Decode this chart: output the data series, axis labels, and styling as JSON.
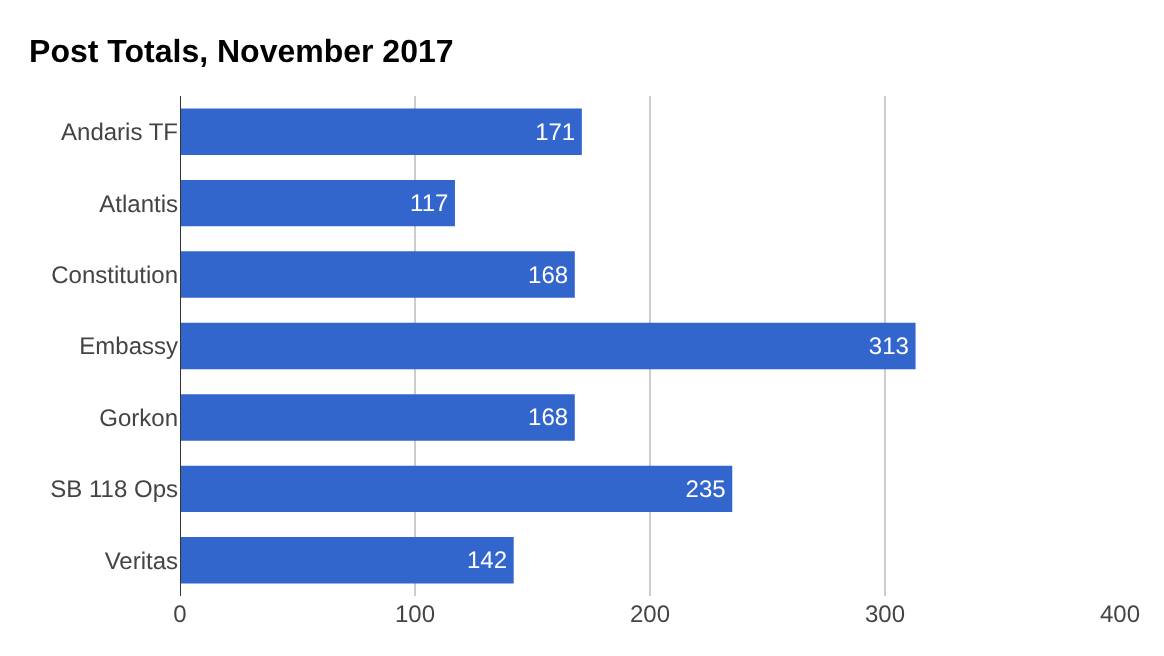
{
  "chart_data": {
    "type": "bar",
    "orientation": "horizontal",
    "title": "Post Totals, November 2017",
    "categories": [
      "Andaris TF",
      "Atlantis",
      "Constitution",
      "Embassy",
      "Gorkon",
      "SB 118 Ops",
      "Veritas"
    ],
    "values": [
      171,
      117,
      168,
      313,
      168,
      235,
      142
    ],
    "color": "#3366cc",
    "xlim": [
      0,
      400
    ],
    "xticks": [
      0,
      100,
      200,
      300,
      400
    ],
    "grid": "x",
    "data_labels": true
  }
}
